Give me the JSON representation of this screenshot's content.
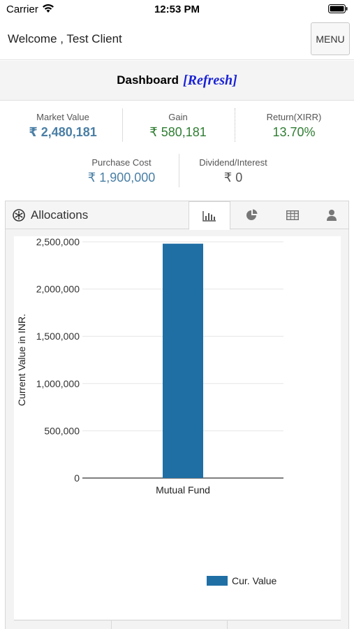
{
  "status_bar": {
    "carrier": "Carrier",
    "time": "12:53 PM"
  },
  "header": {
    "welcome": "Welcome , Test Client",
    "menu_label": "MENU"
  },
  "dashboard": {
    "title": "Dashboard",
    "refresh_label": "[Refresh]"
  },
  "stats": {
    "market_value": {
      "label": "Market Value",
      "value": "₹ 2,480,181",
      "color": "#4a7fa5"
    },
    "gain": {
      "label": "Gain",
      "value": "₹ 580,181",
      "color": "#2f7d32"
    },
    "return_xirr": {
      "label": "Return(XIRR)",
      "value": "13.70%",
      "color": "#2f7d32"
    },
    "purchase_cost": {
      "label": "Purchase Cost",
      "value": "₹ 1,900,000",
      "color": "#4a7fa5"
    },
    "dividend_interest": {
      "label": "Dividend/Interest",
      "value": "₹ 0",
      "color": "#555555"
    }
  },
  "allocations": {
    "title": "Allocations",
    "tabs": [
      {
        "icon": "bar-chart-icon",
        "active": true
      },
      {
        "icon": "pie-chart-icon",
        "active": false
      },
      {
        "icon": "table-icon",
        "active": false
      },
      {
        "icon": "user-icon",
        "active": false
      }
    ]
  },
  "chart_data": {
    "type": "bar",
    "categories": [
      "Mutual Fund"
    ],
    "series": [
      {
        "name": "Cur. Value",
        "values": [
          2480181
        ],
        "color": "#1f6fa5"
      }
    ],
    "ylabel": "Current Value in INR.",
    "ylim": [
      0,
      2500000
    ],
    "yticks": [
      0,
      500000,
      1000000,
      1500000,
      2000000,
      2500000
    ],
    "ytick_labels": [
      "0",
      "500,000",
      "1,000,000",
      "1,500,000",
      "2,000,000",
      "2,500,000"
    ],
    "grid": true,
    "legend_position": "bottom-right"
  }
}
